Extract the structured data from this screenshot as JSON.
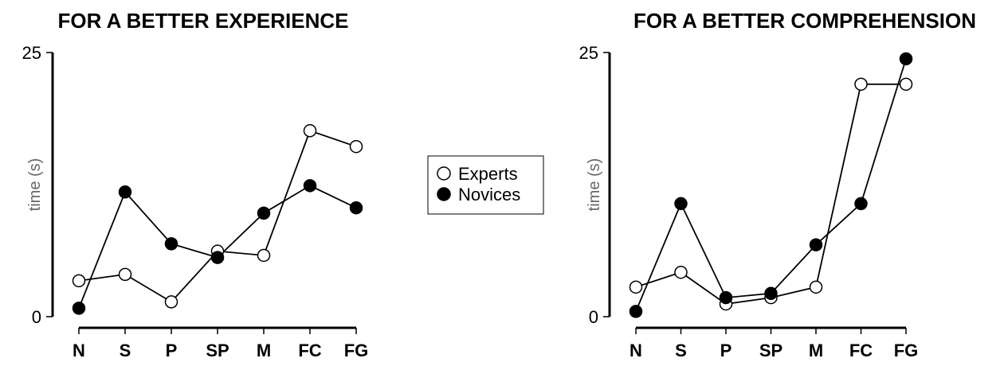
{
  "legend": {
    "entries": [
      {
        "label": "Experts",
        "marker": "open-circle"
      },
      {
        "label": "Novices",
        "marker": "filled-circle"
      }
    ]
  },
  "chart_data": [
    {
      "type": "line",
      "title": "FOR A BETTER EXPERIENCE",
      "ylabel": "time (s)",
      "ylim": [
        0,
        25
      ],
      "yticks": [
        "0",
        "25"
      ],
      "categories": [
        "N",
        "S",
        "P",
        "SP",
        "M",
        "FC",
        "FG"
      ],
      "series": [
        {
          "name": "Experts",
          "marker": "open",
          "values": [
            3.4,
            4.0,
            1.4,
            6.2,
            5.8,
            17.6,
            16.1
          ]
        },
        {
          "name": "Novices",
          "marker": "filled",
          "values": [
            0.8,
            11.8,
            6.9,
            5.6,
            9.8,
            12.4,
            10.3
          ]
        }
      ]
    },
    {
      "type": "line",
      "title": "FOR A BETTER COMPREHENSION",
      "ylabel": "time (s)",
      "ylim": [
        0,
        25
      ],
      "yticks": [
        "0",
        "25"
      ],
      "categories": [
        "N",
        "S",
        "P",
        "SP",
        "M",
        "FC",
        "FG"
      ],
      "series": [
        {
          "name": "Experts",
          "marker": "open",
          "values": [
            2.8,
            4.2,
            1.2,
            1.8,
            2.8,
            22.0,
            22.0
          ]
        },
        {
          "name": "Novices",
          "marker": "filled",
          "values": [
            0.5,
            10.7,
            1.8,
            2.2,
            6.8,
            10.7,
            24.4
          ]
        }
      ]
    }
  ]
}
